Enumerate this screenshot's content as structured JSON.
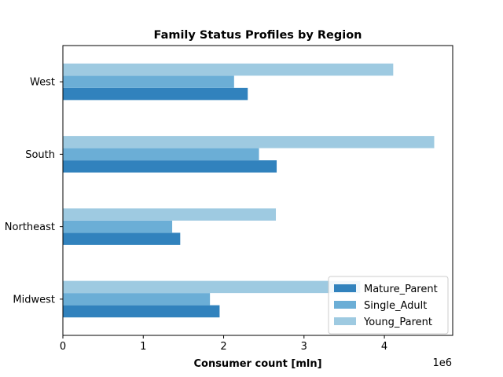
{
  "chart_data": {
    "type": "bar",
    "orientation": "horizontal",
    "title": "Family Status Profiles by Region",
    "xlabel": "Consumer count [mln]",
    "ylabel": "",
    "x_offset_text": "1e6",
    "xlim": [
      0,
      4850000
    ],
    "xticks": [
      0,
      1000000,
      2000000,
      3000000,
      4000000
    ],
    "xtick_labels": [
      "0",
      "1",
      "2",
      "3",
      "4"
    ],
    "categories": [
      "Midwest",
      "Northeast",
      "South",
      "West"
    ],
    "series": [
      {
        "name": "Mature_Parent",
        "color": "#3182bd",
        "values": [
          1950000,
          1460000,
          2660000,
          2300000
        ]
      },
      {
        "name": "Single_Adult",
        "color": "#6baed6",
        "values": [
          1830000,
          1360000,
          2440000,
          2130000
        ]
      },
      {
        "name": "Young_Parent",
        "color": "#9ecae1",
        "values": [
          3700000,
          2650000,
          4620000,
          4110000
        ]
      }
    ],
    "legend_position": "lower right",
    "grid": false
  }
}
